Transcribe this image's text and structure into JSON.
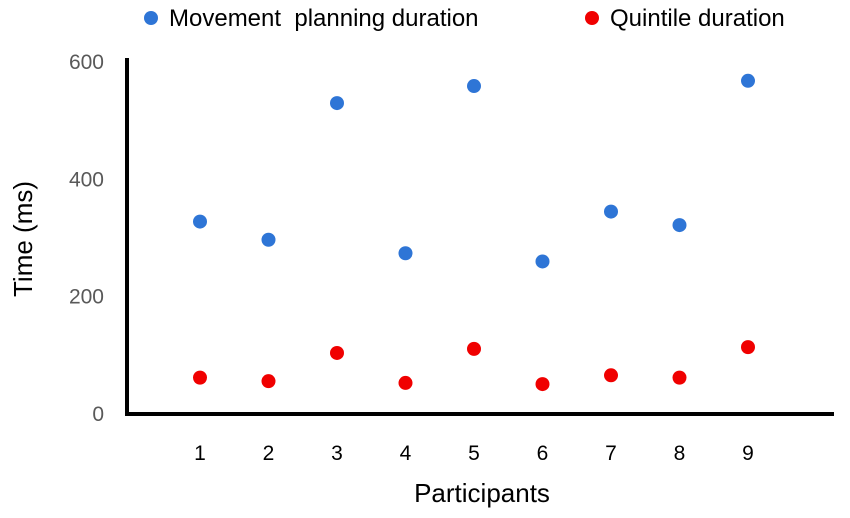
{
  "chart_data": {
    "type": "scatter",
    "title": "",
    "xlabel": "Participants",
    "ylabel": "Time (ms)",
    "categories": [
      "1",
      "2",
      "3",
      "4",
      "5",
      "6",
      "7",
      "8",
      "9"
    ],
    "xlim": [
      0,
      10
    ],
    "ylim": [
      0,
      600
    ],
    "yticks": [
      "0",
      "200",
      "400",
      "600"
    ],
    "grid": false,
    "legend_position": "top",
    "series": [
      {
        "name": "Movement  planning duration",
        "color": "#2E75D6",
        "x": [
          1,
          2,
          3,
          4,
          5,
          6,
          7,
          8,
          9
        ],
        "values": [
          328,
          297,
          530,
          274,
          559,
          260,
          345,
          322,
          568
        ]
      },
      {
        "name": "Quintile duration",
        "color": "#F00000",
        "x": [
          1,
          2,
          3,
          4,
          5,
          6,
          7,
          8,
          9
        ],
        "values": [
          62,
          56,
          104,
          53,
          111,
          51,
          66,
          62,
          114
        ]
      }
    ]
  }
}
